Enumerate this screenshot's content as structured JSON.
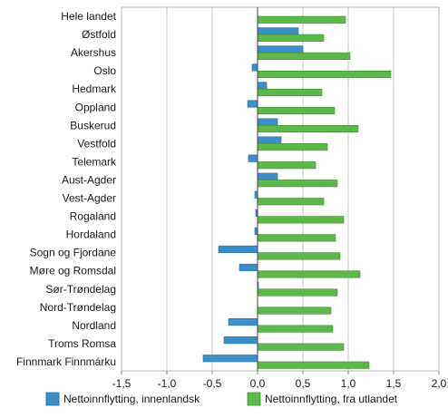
{
  "chart_data": {
    "type": "bar",
    "orientation": "horizontal",
    "categories": [
      "Hele landet",
      "Østfold",
      "Akershus",
      "Oslo",
      "Hedmark",
      "Oppland",
      "Buskerud",
      "Vestfold",
      "Telemark",
      "Aust-Agder",
      "Vest-Agder",
      "Rogaland",
      "Hordaland",
      "Sogn og Fjordane",
      "Møre og Romsdal",
      "Sør-Trøndelag",
      "Nord-Trøndelag",
      "Nordland",
      "Troms Romsa",
      "Finnmark Finnmárku"
    ],
    "series": [
      {
        "name": "Nettoinnflytting, innenlandsk",
        "color": "#3a8fc8",
        "values": [
          0,
          0.45,
          0.5,
          -0.06,
          0.1,
          -0.11,
          0.22,
          0.26,
          -0.1,
          0.22,
          -0.03,
          -0.02,
          -0.03,
          -0.43,
          -0.2,
          0.01,
          0,
          -0.32,
          -0.37,
          -0.6
        ]
      },
      {
        "name": "Nettoinnflytting, fra utlandet",
        "color": "#5db84a",
        "values": [
          0.97,
          0.73,
          1.02,
          1.47,
          0.71,
          0.85,
          1.11,
          0.77,
          0.64,
          0.88,
          0.73,
          0.95,
          0.86,
          0.91,
          1.13,
          0.88,
          0.81,
          0.83,
          0.95,
          1.23
        ]
      }
    ],
    "xticks": [
      "-1,5",
      "-1,0",
      "-0,5",
      "0,0",
      "0,5",
      "1,0",
      "1,5",
      "2,0"
    ],
    "xlim": [
      -1.5,
      2.0
    ],
    "grid": true,
    "legend_position": "bottom"
  }
}
